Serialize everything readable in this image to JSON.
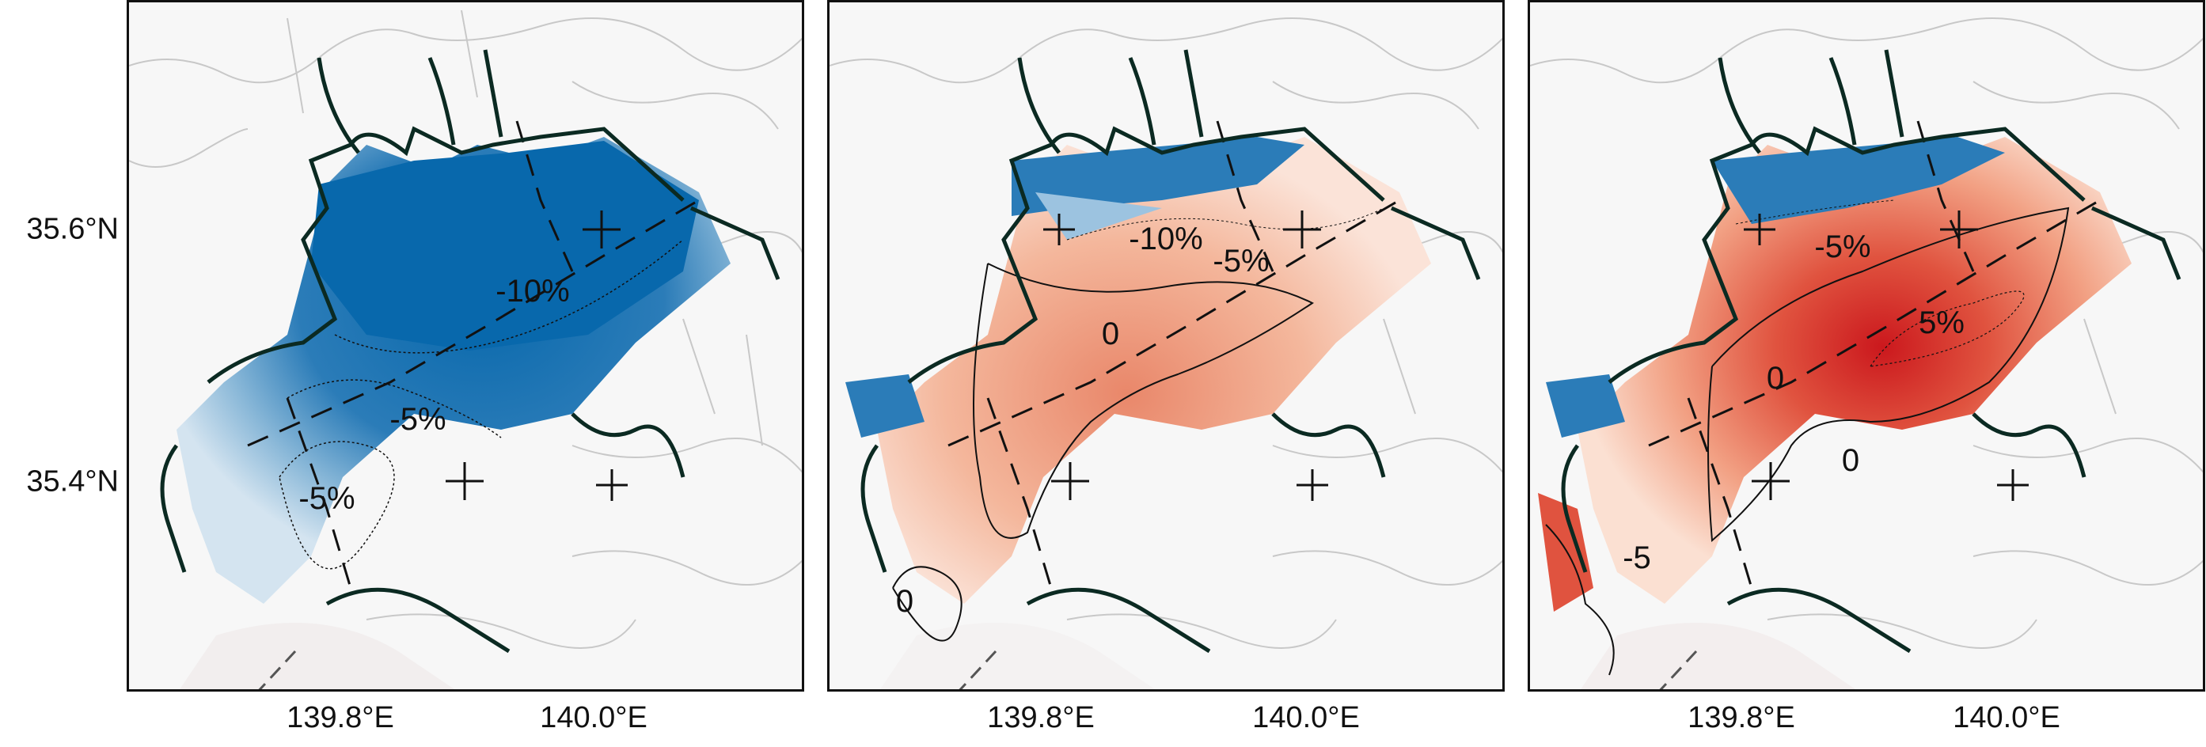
{
  "axes": {
    "lat_ticks": [
      "35.6°N",
      "35.4°N"
    ],
    "lon_ticks": [
      "139.8°E",
      "140.0°E"
    ]
  },
  "panels": [
    {
      "labels": [
        "-10%",
        "-5%",
        "-5%"
      ]
    },
    {
      "labels": [
        "-10%",
        "-5%",
        "0",
        "0"
      ]
    },
    {
      "labels": [
        "-5%",
        "5%",
        "0",
        "0",
        "-5"
      ]
    }
  ],
  "colors": {
    "background": "#f7f7f7",
    "negative": "#0868ac",
    "positive": "#cb181d",
    "coastline": "#0b2a22",
    "borders": "#c8c8c8"
  }
}
